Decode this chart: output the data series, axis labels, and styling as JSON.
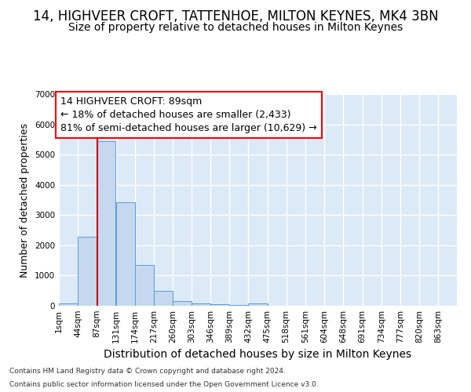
{
  "title1": "14, HIGHVEER CROFT, TATTENHOE, MILTON KEYNES, MK4 3BN",
  "title2": "Size of property relative to detached houses in Milton Keynes",
  "xlabel": "Distribution of detached houses by size in Milton Keynes",
  "ylabel": "Number of detached properties",
  "footnote1": "Contains HM Land Registry data © Crown copyright and database right 2024.",
  "footnote2": "Contains public sector information licensed under the Open Government Licence v3.0.",
  "bar_color": "#c5d8f0",
  "bar_edge_color": "#5b9bd5",
  "background_color": "#dce9f7",
  "grid_color": "#ffffff",
  "annotation_text": "14 HIGHVEER CROFT: 89sqm\n← 18% of detached houses are smaller (2,433)\n81% of semi-detached houses are larger (10,629) →",
  "vline_x": 89,
  "vline_color": "#cc0000",
  "bins": [
    1,
    44,
    87,
    131,
    174,
    217,
    260,
    303,
    346,
    389,
    432,
    475,
    518,
    561,
    604,
    648,
    691,
    734,
    777,
    820,
    863,
    906
  ],
  "counts": [
    80,
    2270,
    5450,
    3420,
    1340,
    480,
    165,
    82,
    45,
    25,
    82,
    0,
    0,
    0,
    0,
    0,
    0,
    0,
    0,
    0,
    0
  ],
  "ylim": [
    0,
    7000
  ],
  "yticks": [
    0,
    1000,
    2000,
    3000,
    4000,
    5000,
    6000,
    7000
  ],
  "xtick_labels": [
    "1sqm",
    "44sqm",
    "87sqm",
    "131sqm",
    "174sqm",
    "217sqm",
    "260sqm",
    "303sqm",
    "346sqm",
    "389sqm",
    "432sqm",
    "475sqm",
    "518sqm",
    "561sqm",
    "604sqm",
    "648sqm",
    "691sqm",
    "734sqm",
    "777sqm",
    "820sqm",
    "863sqm"
  ],
  "title1_fontsize": 12,
  "title2_fontsize": 10,
  "xlabel_fontsize": 10,
  "ylabel_fontsize": 9,
  "tick_fontsize": 7.5,
  "annot_fontsize": 9
}
